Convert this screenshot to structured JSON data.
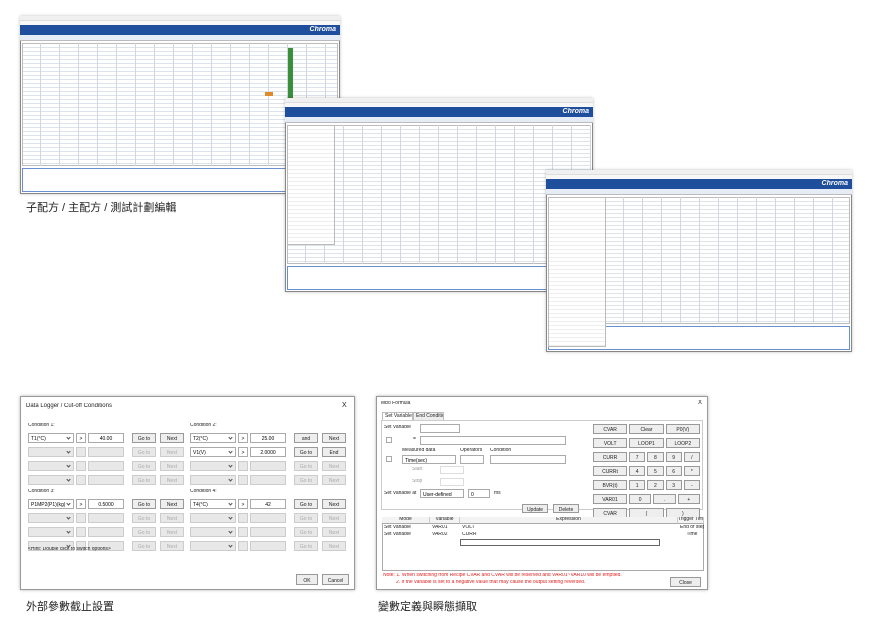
{
  "collage": {
    "brand": "Chroma",
    "caption": "子配方 / 主配方 / 測試計劃編輯"
  },
  "logger": {
    "title": "Data Logger / Cut-off Conditions",
    "close": "X",
    "conditions": [
      {
        "label": "Condition 1:",
        "rows": [
          {
            "param": "T1(°C)",
            "op": ">",
            "value": "40.00",
            "goto": "Go to",
            "next": "Next"
          },
          {
            "goto": "Go to",
            "next": "Next"
          },
          {
            "goto": "Go to",
            "next": "Next"
          },
          {
            "goto": "Go to",
            "next": "Next"
          }
        ]
      },
      {
        "label": "Condition 2:",
        "rows": [
          {
            "param": "T2(°C)",
            "op": ">",
            "value": "25.00",
            "goto": "and",
            "next": "Next"
          },
          {
            "param": "V1(V)",
            "op": ">",
            "value": "2.0000",
            "goto": "Go to",
            "next": "End"
          },
          {
            "goto": "Go to",
            "next": "Next"
          },
          {
            "goto": "Go to",
            "next": "Next"
          }
        ]
      },
      {
        "label": "Condition 3:",
        "rows": [
          {
            "param": "P1MP2(P1)(kg)",
            "op": ">",
            "value": "0.5000",
            "goto": "Go to",
            "next": "Next"
          },
          {
            "goto": "Go to",
            "next": "Next"
          },
          {
            "goto": "Go to",
            "next": "Next"
          },
          {
            "goto": "Go to",
            "next": "Next"
          }
        ]
      },
      {
        "label": "Condition 4:",
        "rows": [
          {
            "param": "T4(°C)",
            "op": ">",
            "value": "42",
            "goto": "Go to",
            "next": "Next"
          },
          {
            "goto": "Go to",
            "next": "Next"
          },
          {
            "goto": "Go to",
            "next": "Next"
          },
          {
            "goto": "Go to",
            "next": "Next"
          }
        ]
      }
    ],
    "hint": "<Hint: Double click to switch options>",
    "ok": "OK",
    "cancel": "Cancel",
    "caption": "外部參數截止設置"
  },
  "formula": {
    "title": "Mbo Formula",
    "close": "X",
    "tabs": [
      "Set Variable",
      "End Condition"
    ],
    "set_variable": "Set Variable",
    "equals": "=",
    "measured": "Measured data",
    "operators": "Operators",
    "condition": "Condition",
    "time_field": "Time(sec)",
    "start": "Start",
    "stop": "Stop",
    "set_at": "Set Variable at",
    "user_defined": "User-defined",
    "at_value": "0",
    "unit": "ms",
    "update": "Update",
    "delete": "Delete",
    "keypad": [
      [
        "CVAR",
        "Clear",
        "P0(V)"
      ],
      [
        "VOLT",
        "LOOP1",
        "LOOP2"
      ],
      [
        "CURR",
        "7",
        "8",
        "9",
        "/"
      ],
      [
        "CURRt",
        "4",
        "5",
        "6",
        "*"
      ],
      [
        "BVR(t)",
        "1",
        "2",
        "3",
        "-"
      ],
      [
        "VAR01",
        "0",
        ".",
        "+"
      ],
      [
        "CVAR",
        "(",
        ")"
      ]
    ],
    "table": {
      "headers": [
        "Mode",
        "Variable",
        "Expression",
        "Trigger Time"
      ],
      "rows": [
        [
          "Set Variable",
          "VAR01",
          "VOLT",
          "End of step"
        ],
        [
          "Set Variable",
          "VAR02",
          "CURR",
          "Time"
        ]
      ]
    },
    "notes": [
      "Note: 1. When switching from Recipe CVAR and CVAR will be reserved and VAR01~VAR10 will be emptied.",
      "2. If the variable is set to a negative value that may cause the output setting reversed."
    ],
    "close_btn": "Close",
    "caption": "變數定義與瞬態擷取"
  }
}
